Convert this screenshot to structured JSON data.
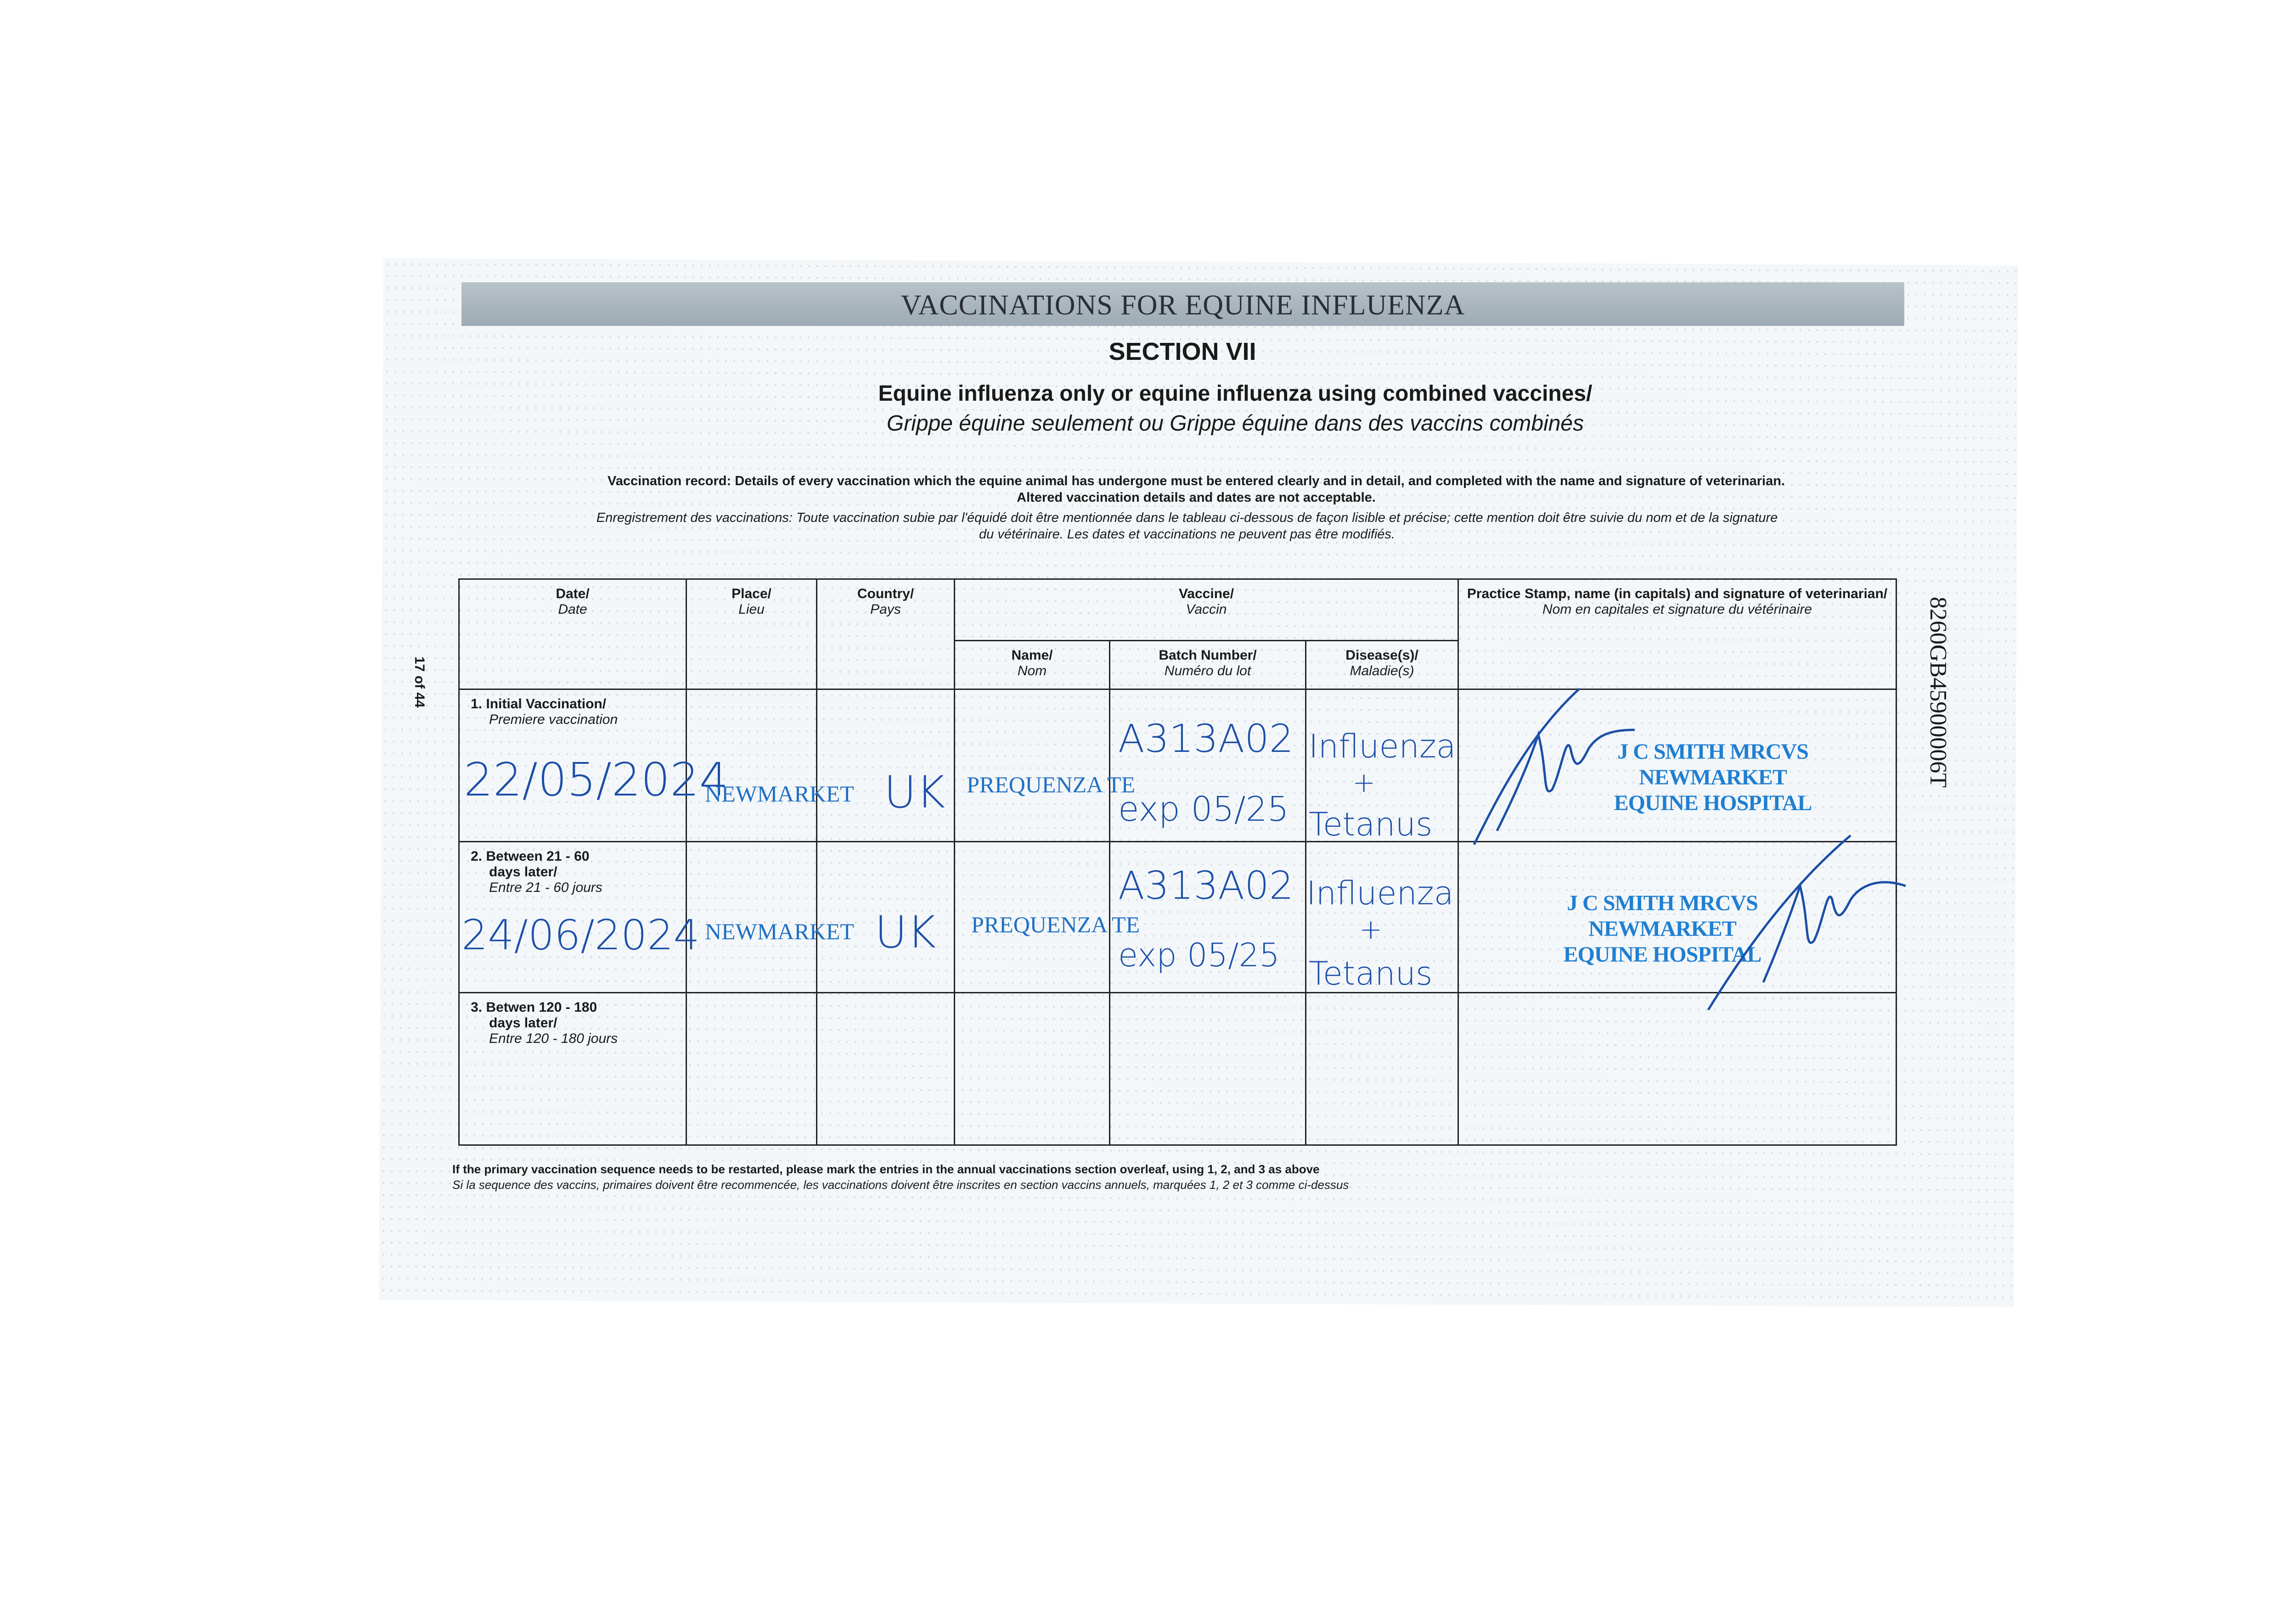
{
  "header": {
    "band_title": "VACCINATIONS FOR EQUINE INFLUENZA",
    "section": "SECTION VII",
    "subtitle_en": "Equine influenza only or equine influenza using combined vaccines/",
    "subtitle_fr": "Grippe équine seulement ou Grippe équine dans des vaccins combinés"
  },
  "instructions": {
    "en_1": "Vaccination record: Details of every vaccination which the equine animal has undergone must be entered clearly and in detail, and completed with the name and signature of veterinarian.",
    "en_2": "Altered vaccination details and dates are not acceptable.",
    "fr_1": "Enregistrement des vaccinations: Toute vaccination subie par l'équidé doit être mentionnée dans le tableau ci-dessous de façon lisible et précise; cette mention doit être suivie du nom et de la signature",
    "fr_2": "du vétérinaire. Les dates et vaccinations ne peuvent pas être modifiés."
  },
  "page_number": "17 of 44",
  "document_code": "8260GB45900006T",
  "table": {
    "headers": {
      "date": "Date/",
      "date_fr": "Date",
      "place": "Place/",
      "place_fr": "Lieu",
      "country": "Country/",
      "country_fr": "Pays",
      "vaccine": "Vaccine/",
      "vaccine_fr": "Vaccin",
      "name": "Name/",
      "name_fr": "Nom",
      "batch": "Batch Number/",
      "batch_fr": "Numéro du lot",
      "disease": "Disease(s)/",
      "disease_fr": "Maladie(s)",
      "stamp": "Practice Stamp, name (in capitals) and signature of veterinarian/",
      "stamp_fr": "Nom en capitales et signature du vétérinaire"
    },
    "rows": [
      {
        "label": "1. Initial Vaccination/",
        "label_fr": "Premiere vaccination",
        "date": "22/05/2024",
        "place": "NEWMARKET",
        "country": "UK",
        "name": "PREQUENZA TE",
        "batch": "A313A02",
        "expiry": "exp 05/25",
        "disease_1": "Influenza",
        "disease_plus": "+",
        "disease_2": "Tetanus",
        "stamp": [
          "J C SMITH MRCVS",
          "NEWMARKET",
          "EQUINE HOSPITAL"
        ]
      },
      {
        "label": "2. Between 21 - 60",
        "label_2": "days later/",
        "label_fr": "Entre 21 - 60 jours",
        "date": "24/06/2024",
        "place": "NEWMARKET",
        "country": "UK",
        "name": "PREQUENZA TE",
        "batch": "A313A02",
        "expiry": "exp 05/25",
        "disease_1": "Influenza",
        "disease_plus": "+",
        "disease_2": "Tetanus",
        "stamp": [
          "J C SMITH MRCVS",
          "NEWMARKET",
          "EQUINE HOSPITAL"
        ]
      },
      {
        "label": "3. Betwen 120 - 180",
        "label_2": "days later/",
        "label_fr": "Entre 120 - 180 jours"
      }
    ]
  },
  "footnote": {
    "en": "If the primary vaccination sequence needs to be restarted, please mark the entries in the annual vaccinations section overleaf, using 1, 2, and 3 as above",
    "fr": "Si la sequence des vaccins, primaires doivent être recommencée, les vaccinations doivent être inscrites en section vaccins annuels, marquées 1, 2 et 3 comme ci-dessus"
  },
  "colors": {
    "ink": "#1b4fa8",
    "stamp": "#1f7fd2",
    "band": "#a9b5bd"
  }
}
